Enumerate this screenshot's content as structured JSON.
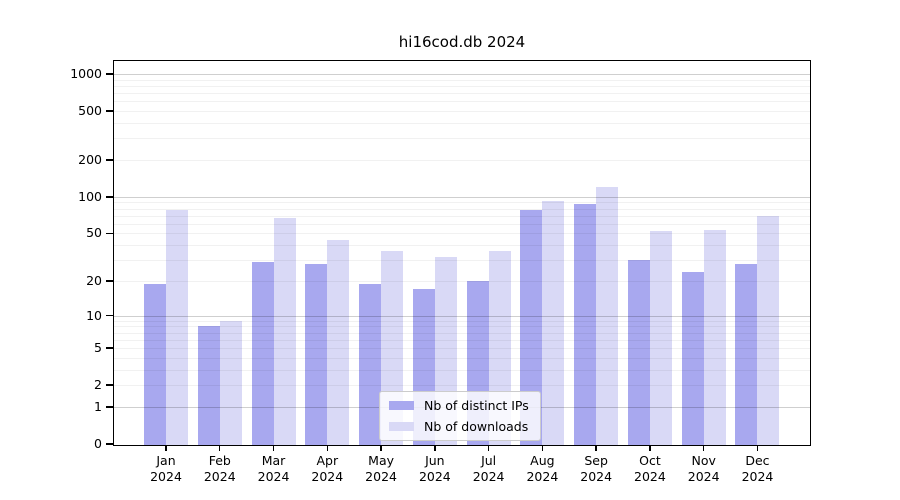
{
  "chart_data": {
    "type": "bar",
    "title": "hi16cod.db 2024",
    "categories": [
      "Jan",
      "Feb",
      "Mar",
      "Apr",
      "May",
      "Jun",
      "Jul",
      "Aug",
      "Sep",
      "Oct",
      "Nov",
      "Dec"
    ],
    "category_sublabel": "2024",
    "series": [
      {
        "name": "Nb of distinct IPs",
        "color": "#a8a8ef",
        "values": [
          19,
          8,
          29,
          28,
          19,
          17,
          20,
          78,
          88,
          30,
          24,
          28
        ]
      },
      {
        "name": "Nb of downloads",
        "color": "#d9d9f6",
        "values": [
          78,
          9,
          67,
          44,
          36,
          32,
          36,
          93,
          121,
          52,
          53,
          70
        ]
      }
    ],
    "y_scale": "log1p",
    "y_ticks": [
      1000,
      500,
      200,
      100,
      50,
      20,
      10,
      5,
      2,
      1,
      0
    ],
    "ylim": [
      0,
      1300
    ],
    "grid": true,
    "legend_position": "lower center"
  }
}
